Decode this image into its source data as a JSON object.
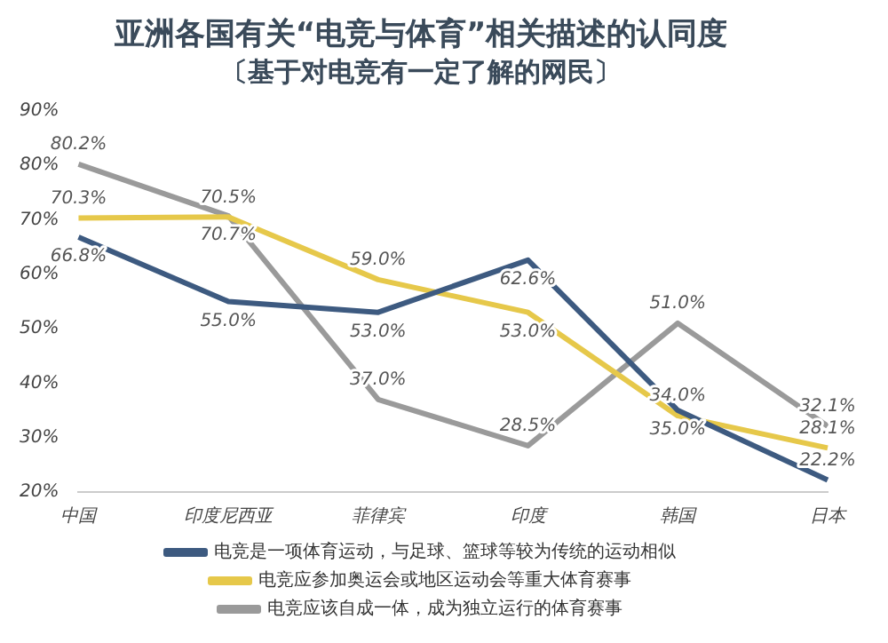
{
  "chart_data": {
    "type": "line",
    "title": "亚洲各国有关“电竞与体育”相关描述的认同度",
    "subtitle": "〔基于对电竞有一定了解的网民〕",
    "categories": [
      "中国",
      "印度尼西亚",
      "菲律宾",
      "印度",
      "韩国",
      "日本"
    ],
    "series": [
      {
        "name": "电竞是一项体育运动，与足球、篮球等较为传统的运动相似",
        "color": "#3d5a80",
        "values": [
          66.8,
          55.0,
          53.0,
          62.6,
          35.0,
          22.2
        ],
        "value_labels": [
          "66.8%",
          "55.0%",
          "53.0%",
          "62.6%",
          "35.0%",
          "22.2%"
        ]
      },
      {
        "name": "电竞应参加奥运会或地区运动会等重大体育赛事",
        "color": "#e6c84a",
        "values": [
          70.3,
          70.5,
          59.0,
          53.0,
          34.0,
          28.1
        ],
        "value_labels": [
          "70.3%",
          "70.5%",
          "59.0%",
          "53.0%",
          "34.0%",
          "28.1%"
        ]
      },
      {
        "name": "电竞应该自成一体，成为独立运行的体育赛事",
        "color": "#9a9a9a",
        "values": [
          80.2,
          70.7,
          37.0,
          28.5,
          51.0,
          32.1
        ],
        "value_labels": [
          "80.2%",
          "70.7%",
          "37.0%",
          "28.5%",
          "51.0%",
          "32.1%"
        ]
      }
    ],
    "ylim": [
      20,
      90
    ],
    "yticks": [
      {
        "value": 20,
        "label": "20%"
      },
      {
        "value": 30,
        "label": "30%"
      },
      {
        "value": 40,
        "label": "40%"
      },
      {
        "value": 50,
        "label": "50%"
      },
      {
        "value": 60,
        "label": "60%"
      },
      {
        "value": 70,
        "label": "70%"
      },
      {
        "value": 80,
        "label": "80%"
      },
      {
        "value": 90,
        "label": "90%"
      }
    ],
    "grid": false,
    "legend": "bottom",
    "marker": "none",
    "line_style": "solid"
  }
}
